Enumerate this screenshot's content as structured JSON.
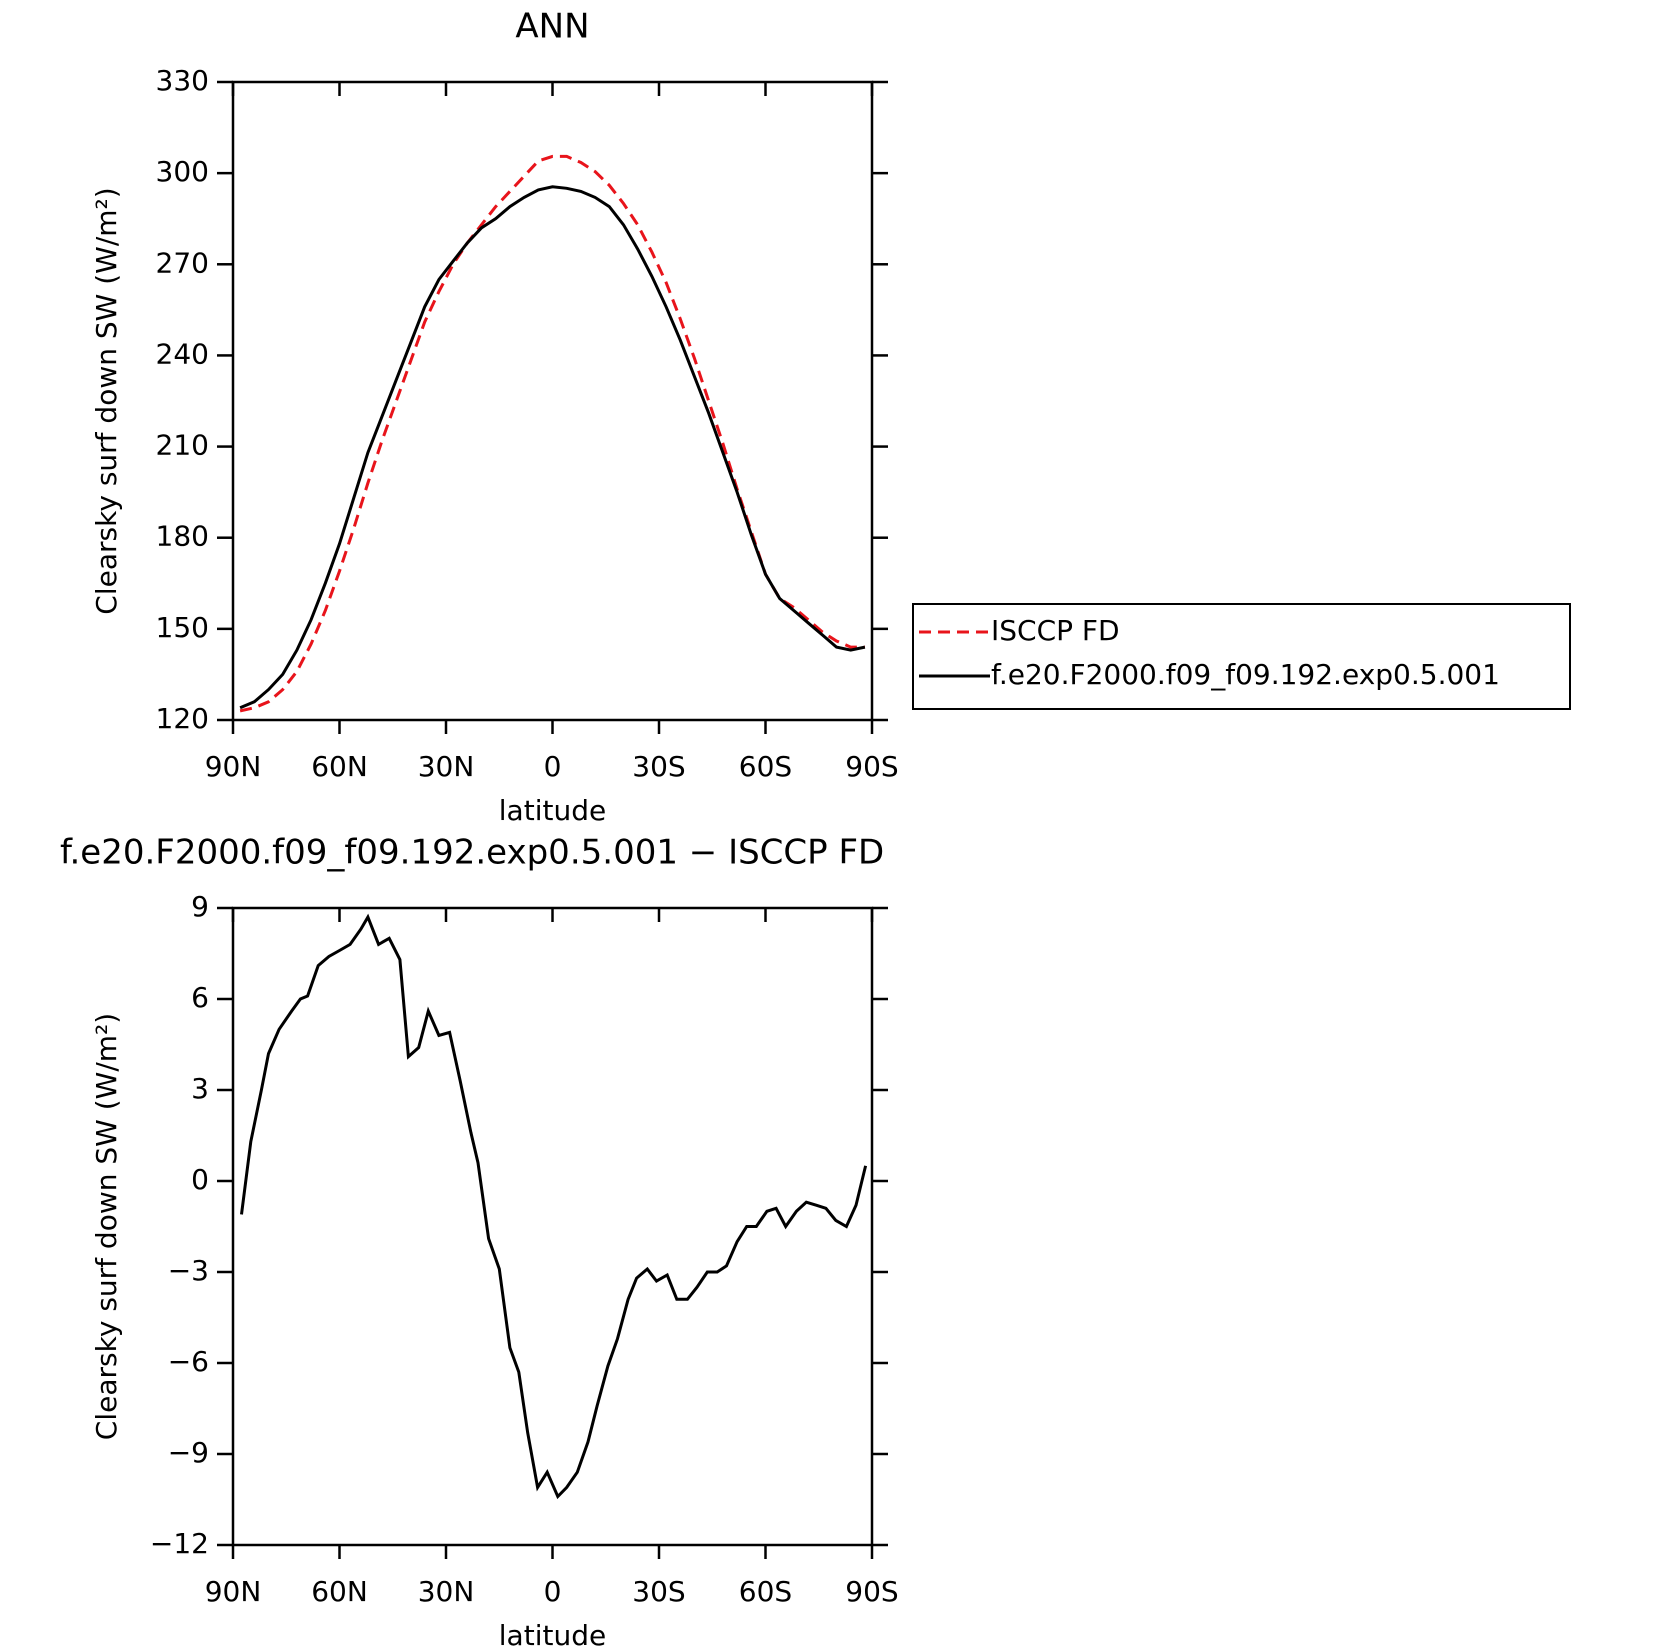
{
  "chart_data": [
    {
      "type": "line",
      "title": "ANN",
      "xlabel": "latitude",
      "ylabel": "Clearsky surf down SW (W/m²)",
      "xlim": [
        90,
        -90
      ],
      "xticks": [
        {
          "value": 90,
          "label": "90N"
        },
        {
          "value": 60,
          "label": "60N"
        },
        {
          "value": 30,
          "label": "30N"
        },
        0,
        {
          "value": -30,
          "label": "30S"
        },
        {
          "value": -60,
          "label": "60S"
        },
        {
          "value": -90,
          "label": "90S"
        }
      ],
      "ylim": [
        120,
        330
      ],
      "yticks": [
        120,
        150,
        180,
        210,
        240,
        270,
        300,
        330
      ],
      "legend": "right",
      "x": [
        88,
        84,
        80,
        76,
        72,
        68,
        64,
        60,
        56,
        52,
        48,
        44,
        40,
        36,
        32,
        28,
        24,
        20,
        16,
        12,
        8,
        4,
        0,
        -4,
        -8,
        -12,
        -16,
        -20,
        -24,
        -28,
        -32,
        -36,
        -40,
        -44,
        -48,
        -52,
        -56,
        -60,
        -64,
        -68,
        -72,
        -76,
        -80,
        -84,
        -88
      ],
      "series": [
        {
          "name": "ISCCP FD",
          "color": "#e8141b",
          "dash": true,
          "values": [
            123,
            124,
            126,
            130,
            136,
            145,
            156,
            169,
            183,
            198,
            212,
            225,
            238,
            251,
            261,
            270,
            277,
            283,
            289,
            294,
            299,
            304,
            305.5,
            305.5,
            303.5,
            300.5,
            296,
            290,
            283,
            274,
            264,
            252,
            239,
            225,
            211,
            196,
            182,
            168,
            160,
            157,
            153,
            149,
            146,
            144,
            144
          ]
        },
        {
          "name": "f.e20.F2000.f09_f09.192.exp0.5.001",
          "color": "#000000",
          "dash": false,
          "values": [
            124,
            126,
            130,
            135,
            143,
            153,
            165,
            178,
            193,
            208,
            220,
            232,
            244,
            256,
            265,
            271,
            277,
            282,
            285,
            289,
            292,
            294.5,
            295.5,
            295,
            294,
            292,
            289,
            283,
            275,
            266,
            256,
            245,
            233,
            221,
            208,
            195,
            181,
            168,
            160,
            156,
            152,
            148,
            144,
            143,
            144
          ]
        }
      ]
    },
    {
      "type": "line",
      "title": "f.e20.F2000.f09_f09.192.exp0.5.001 − ISCCP FD",
      "xlabel": "latitude",
      "ylabel": "Clearsky surf down SW (W/m²)",
      "xlim": [
        90,
        -90
      ],
      "xticks": [
        {
          "value": 90,
          "label": "90N"
        },
        {
          "value": 60,
          "label": "60N"
        },
        {
          "value": 30,
          "label": "30N"
        },
        0,
        {
          "value": -30,
          "label": "30S"
        },
        {
          "value": -60,
          "label": "60S"
        },
        {
          "value": -90,
          "label": "90S"
        }
      ],
      "ylim": [
        -12,
        9
      ],
      "yticks": [
        {
          "value": -12,
          "label": "−12"
        },
        {
          "value": -9,
          "label": "−9"
        },
        {
          "value": -6,
          "label": "−6"
        },
        {
          "value": -3,
          "label": "−3"
        },
        0,
        3,
        6,
        9
      ],
      "x": [
        87.6,
        85,
        82,
        80,
        77,
        73.5,
        71,
        69,
        66,
        63,
        60,
        57,
        54,
        52,
        49,
        46,
        43,
        40.6,
        37.7,
        35,
        32,
        29,
        26,
        23,
        21,
        18,
        15,
        12,
        9.5,
        7,
        4.2,
        1.5,
        -1.5,
        -4,
        -7,
        -10,
        -12.6,
        -15.6,
        -18.3,
        -21.3,
        -23.7,
        -26.7,
        -29.3,
        -32.3,
        -35,
        -38,
        -40.7,
        -43.6,
        -46.4,
        -49,
        -52,
        -54.7,
        -57.4,
        -60.4,
        -63,
        -65.7,
        -68.7,
        -71.5,
        -74.4,
        -77,
        -79.8,
        -82.8,
        -85.5,
        -88.2
      ],
      "series": [
        {
          "color": "#000000",
          "dash": false,
          "values": [
            -1.1,
            1.3,
            3.0,
            4.2,
            5.0,
            5.6,
            6.0,
            6.1,
            7.1,
            7.4,
            7.6,
            7.8,
            8.3,
            8.7,
            7.8,
            8.0,
            7.3,
            4.1,
            4.4,
            5.6,
            4.8,
            4.9,
            3.3,
            1.6,
            0.6,
            -1.9,
            -2.9,
            -5.5,
            -6.3,
            -8.3,
            -10.1,
            -9.6,
            -10.4,
            -10.1,
            -9.6,
            -8.6,
            -7.4,
            -6.1,
            -5.2,
            -3.9,
            -3.2,
            -2.9,
            -3.3,
            -3.1,
            -3.9,
            -3.9,
            -3.5,
            -3.0,
            -3.0,
            -2.8,
            -2.0,
            -1.5,
            -1.5,
            -1.0,
            -0.9,
            -1.5,
            -1.0,
            -0.7,
            -0.8,
            -0.9,
            -1.3,
            -1.5,
            -0.8,
            0.5
          ]
        }
      ]
    }
  ]
}
